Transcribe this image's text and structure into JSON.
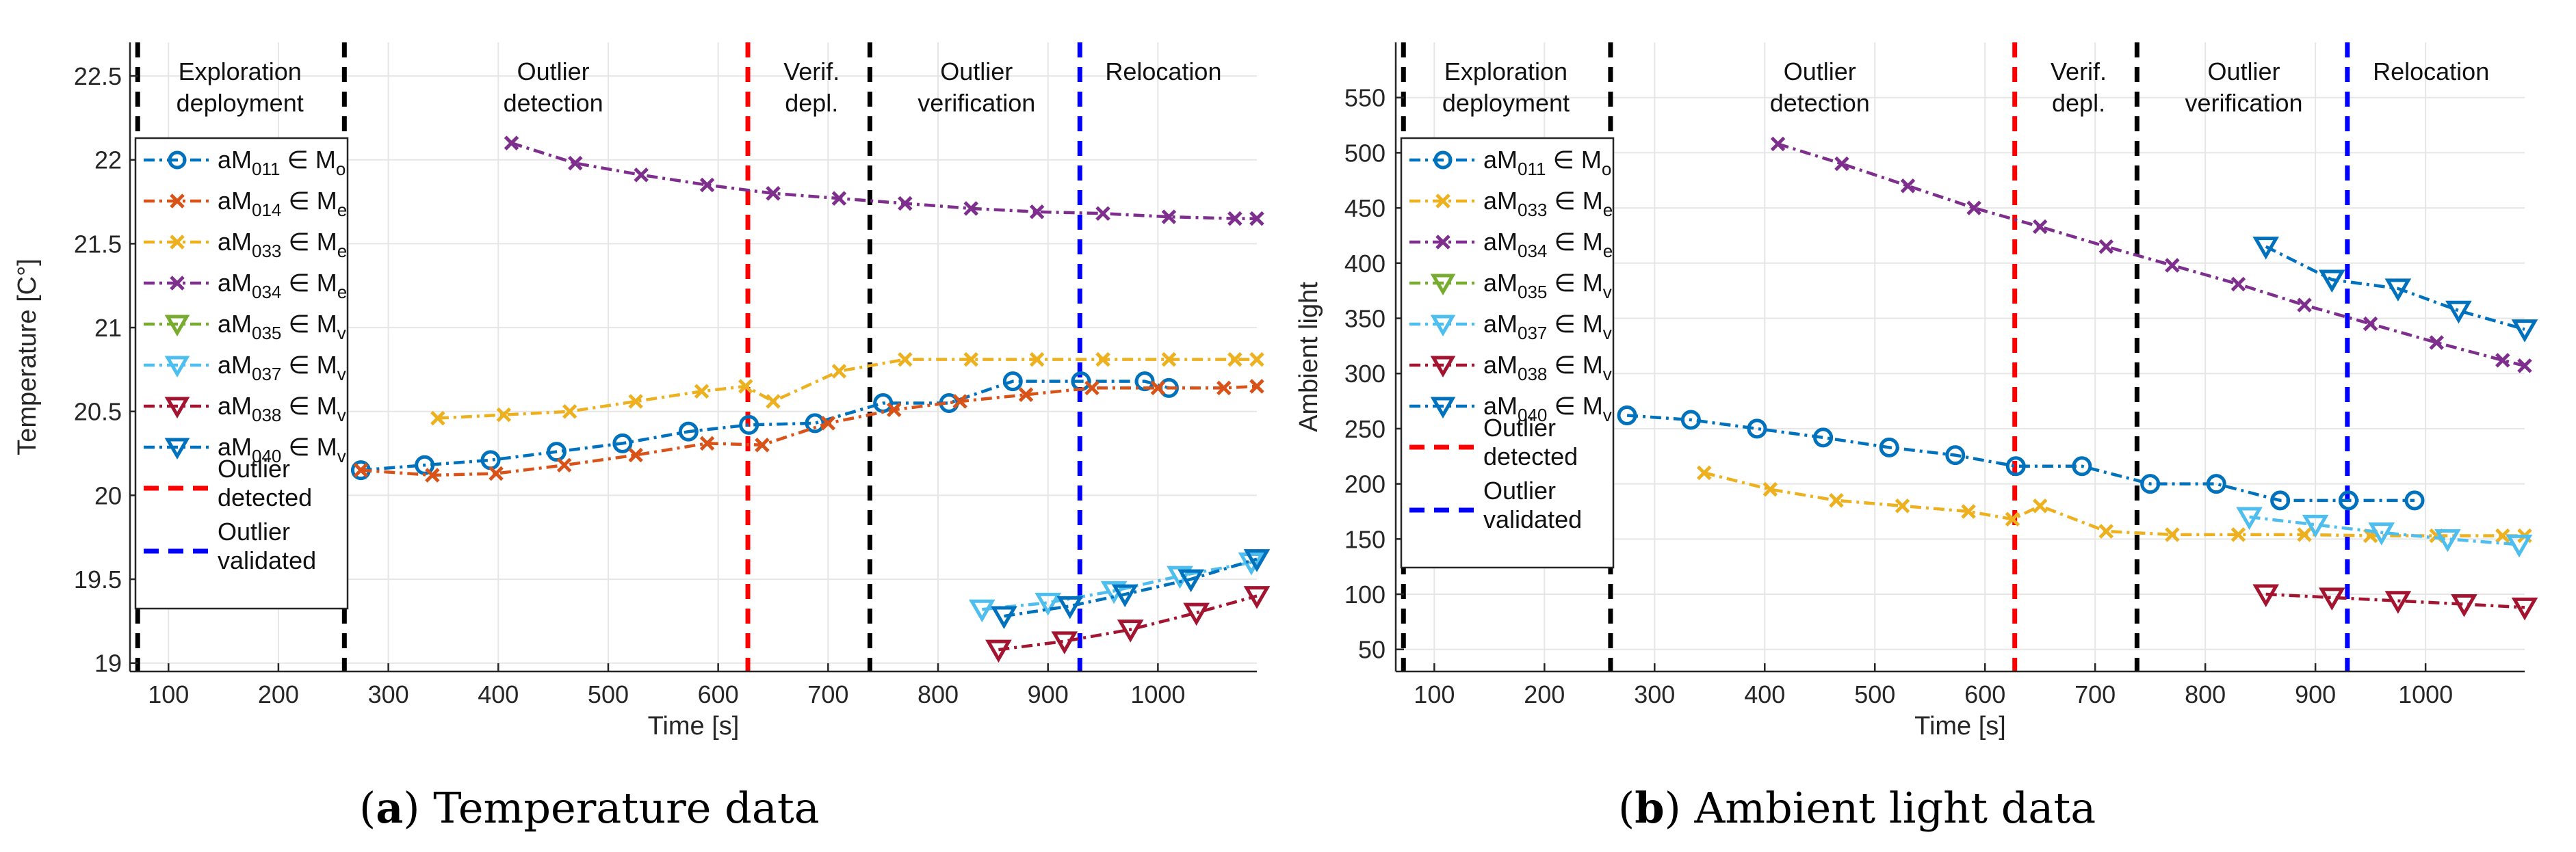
{
  "figure": {
    "caption_a": {
      "letter": "a",
      "text": "Temperature data"
    },
    "caption_b": {
      "letter": "b",
      "text": "Ambient light data"
    }
  },
  "chart_data": [
    {
      "type": "line",
      "xlabel": "Time [s]",
      "ylabel": "Temperature [C°]",
      "xlim": [
        65,
        1090
      ],
      "ylim": [
        18.95,
        22.7
      ],
      "xticks": [
        100,
        200,
        300,
        400,
        500,
        600,
        700,
        800,
        900,
        1000
      ],
      "yticks": [
        19,
        19.5,
        20,
        20.5,
        21,
        21.5,
        22,
        22.5
      ],
      "ytick_labels": [
        "19",
        "19.5",
        "20",
        "20.5",
        "21",
        "21.5",
        "22",
        "22.5"
      ],
      "grid": true,
      "legend_position": "upper-left",
      "phases": [
        {
          "label": [
            "Exploration",
            "deployment"
          ],
          "x": 165
        },
        {
          "label": [
            "Outlier",
            "detection"
          ],
          "x": 450
        },
        {
          "label": [
            "Verif.",
            "depl."
          ],
          "x": 685
        },
        {
          "label": [
            "Outlier",
            "verification"
          ],
          "x": 835
        },
        {
          "label": [
            "Relocation"
          ],
          "x": 1005
        }
      ],
      "vlines": [
        {
          "x": 72,
          "color": "#000000"
        },
        {
          "x": 260,
          "color": "#000000"
        },
        {
          "x": 627,
          "color": "#ff0000"
        },
        {
          "x": 738,
          "color": "#000000"
        },
        {
          "x": 929,
          "color": "#0000ff"
        }
      ],
      "series": [
        {
          "name": "aM011 ∈ Mo",
          "sub": "011",
          "set": "o",
          "color": "#0072bd",
          "marker": "circle",
          "x": [
            275,
            333,
            393,
            453,
            513,
            573,
            628,
            688,
            750,
            810,
            868,
            930,
            988,
            1010
          ],
          "y": [
            20.15,
            20.18,
            20.21,
            20.26,
            20.31,
            20.38,
            20.42,
            20.43,
            20.55,
            20.55,
            20.68,
            20.68,
            20.68,
            20.64
          ]
        },
        {
          "name": "aM014 ∈ Me",
          "sub": "014",
          "set": "e",
          "color": "#d95319",
          "marker": "x",
          "x": [
            275,
            340,
            398,
            460,
            525,
            590,
            640,
            700,
            760,
            820,
            880,
            940,
            1000,
            1060,
            1090
          ],
          "y": [
            20.15,
            20.12,
            20.13,
            20.18,
            20.24,
            20.31,
            20.3,
            20.43,
            20.51,
            20.56,
            20.6,
            20.64,
            20.64,
            20.64,
            20.65
          ]
        },
        {
          "name": "aM033 ∈ Me",
          "sub": "033",
          "set": "e",
          "color": "#edb120",
          "marker": "x",
          "x": [
            345,
            405,
            465,
            525,
            585,
            625,
            650,
            710,
            770,
            830,
            890,
            950,
            1010,
            1070,
            1090
          ],
          "y": [
            20.46,
            20.48,
            20.5,
            20.56,
            20.62,
            20.65,
            20.56,
            20.74,
            20.81,
            20.81,
            20.81,
            20.81,
            20.81,
            20.81,
            20.81
          ]
        },
        {
          "name": "aM034 ∈ Me",
          "sub": "034",
          "set": "e",
          "color": "#7e2f8e",
          "marker": "x",
          "x": [
            412,
            470,
            530,
            590,
            650,
            710,
            770,
            830,
            890,
            950,
            1010,
            1070,
            1090
          ],
          "y": [
            22.1,
            21.98,
            21.91,
            21.85,
            21.8,
            21.77,
            21.74,
            21.71,
            21.69,
            21.68,
            21.66,
            21.65,
            21.65
          ]
        },
        {
          "name": "aM035 ∈ Mv",
          "sub": "035",
          "set": "v",
          "color": "#77ac30",
          "marker": "triangle",
          "x": [],
          "y": []
        },
        {
          "name": "aM037 ∈ Mv",
          "sub": "037",
          "set": "v",
          "color": "#4dbeee",
          "marker": "triangle",
          "x": [
            840,
            900,
            960,
            1020,
            1085
          ],
          "y": [
            19.32,
            19.36,
            19.43,
            19.52,
            19.6
          ]
        },
        {
          "name": "aM038 ∈ Mv",
          "sub": "038",
          "set": "v",
          "color": "#a2142f",
          "marker": "triangle",
          "x": [
            855,
            915,
            975,
            1035,
            1090
          ],
          "y": [
            19.08,
            19.13,
            19.2,
            19.3,
            19.4
          ]
        },
        {
          "name": "aM040 ∈ Mv",
          "sub": "040",
          "set": "v",
          "color": "#0072bd",
          "marker": "triangle",
          "x": [
            860,
            920,
            970,
            1030,
            1090
          ],
          "y": [
            19.28,
            19.34,
            19.41,
            19.5,
            19.62
          ]
        }
      ],
      "legend_extra": [
        {
          "label": [
            "Outlier",
            "detected"
          ],
          "color": "#ff0000"
        },
        {
          "label": [
            "Outlier",
            "validated"
          ],
          "color": "#0000ff"
        }
      ]
    },
    {
      "type": "line",
      "xlabel": "Time [s]",
      "ylabel": "Ambient light",
      "xlim": [
        65,
        1090
      ],
      "ylim": [
        30,
        600
      ],
      "xticks": [
        100,
        200,
        300,
        400,
        500,
        600,
        700,
        800,
        900,
        1000
      ],
      "yticks": [
        50,
        100,
        150,
        200,
        250,
        300,
        350,
        400,
        450,
        500,
        550
      ],
      "ytick_labels": [
        "50",
        "100",
        "150",
        "200",
        "250",
        "300",
        "350",
        "400",
        "450",
        "500",
        "550"
      ],
      "grid": true,
      "legend_position": "upper-left",
      "phases": [
        {
          "label": [
            "Exploration",
            "deployment"
          ],
          "x": 165
        },
        {
          "label": [
            "Outlier",
            "detection"
          ],
          "x": 450
        },
        {
          "label": [
            "Verif.",
            "depl."
          ],
          "x": 685
        },
        {
          "label": [
            "Outlier",
            "verification"
          ],
          "x": 835
        },
        {
          "label": [
            "Relocation"
          ],
          "x": 1005
        }
      ],
      "vlines": [
        {
          "x": 72,
          "color": "#000000"
        },
        {
          "x": 260,
          "color": "#000000"
        },
        {
          "x": 627,
          "color": "#ff0000"
        },
        {
          "x": 738,
          "color": "#000000"
        },
        {
          "x": 929,
          "color": "#0000ff"
        }
      ],
      "series": [
        {
          "name": "aM011 ∈ Mo",
          "sub": "011",
          "set": "o",
          "color": "#0072bd",
          "marker": "circle",
          "x": [
            275,
            333,
            393,
            453,
            513,
            573,
            628,
            688,
            750,
            810,
            868,
            930,
            990
          ],
          "y": [
            262,
            258,
            250,
            242,
            233,
            226,
            216,
            216,
            200,
            200,
            185,
            185,
            185
          ]
        },
        {
          "name": "aM033 ∈ Me",
          "sub": "033",
          "set": "e",
          "color": "#edb120",
          "marker": "x",
          "x": [
            345,
            405,
            465,
            525,
            585,
            625,
            650,
            710,
            770,
            830,
            890,
            950,
            1010,
            1070,
            1090
          ],
          "y": [
            210,
            195,
            185,
            180,
            175,
            168,
            180,
            157,
            154,
            154,
            154,
            153,
            153,
            153,
            153
          ]
        },
        {
          "name": "aM034 ∈ Me",
          "sub": "034",
          "set": "e",
          "color": "#7e2f8e",
          "marker": "x",
          "x": [
            412,
            470,
            530,
            590,
            650,
            710,
            770,
            830,
            890,
            950,
            1010,
            1070,
            1090
          ],
          "y": [
            508,
            490,
            470,
            450,
            433,
            415,
            398,
            381,
            362,
            345,
            328,
            312,
            307
          ]
        },
        {
          "name": "aM035 ∈ Mv",
          "sub": "035",
          "set": "v",
          "color": "#77ac30",
          "marker": "triangle",
          "x": [],
          "y": []
        },
        {
          "name": "aM037 ∈ Mv",
          "sub": "037",
          "set": "v",
          "color": "#4dbeee",
          "marker": "triangle",
          "x": [
            840,
            900,
            960,
            1020,
            1085
          ],
          "y": [
            170,
            163,
            156,
            150,
            145
          ]
        },
        {
          "name": "aM038 ∈ Mv",
          "sub": "038",
          "set": "v",
          "color": "#a2142f",
          "marker": "triangle",
          "x": [
            855,
            915,
            975,
            1035,
            1090
          ],
          "y": [
            100,
            97,
            94,
            91,
            88
          ]
        },
        {
          "name": "aM040 ∈ Mv",
          "sub": "040",
          "set": "v",
          "color": "#0072bd",
          "marker": "triangle",
          "x": [
            855,
            915,
            975,
            1030,
            1090
          ],
          "y": [
            415,
            385,
            377,
            357,
            340
          ]
        }
      ],
      "legend_extra": [
        {
          "label": [
            "Outlier",
            "detected"
          ],
          "color": "#ff0000"
        },
        {
          "label": [
            "Outlier",
            "validated"
          ],
          "color": "#0000ff"
        }
      ]
    }
  ]
}
